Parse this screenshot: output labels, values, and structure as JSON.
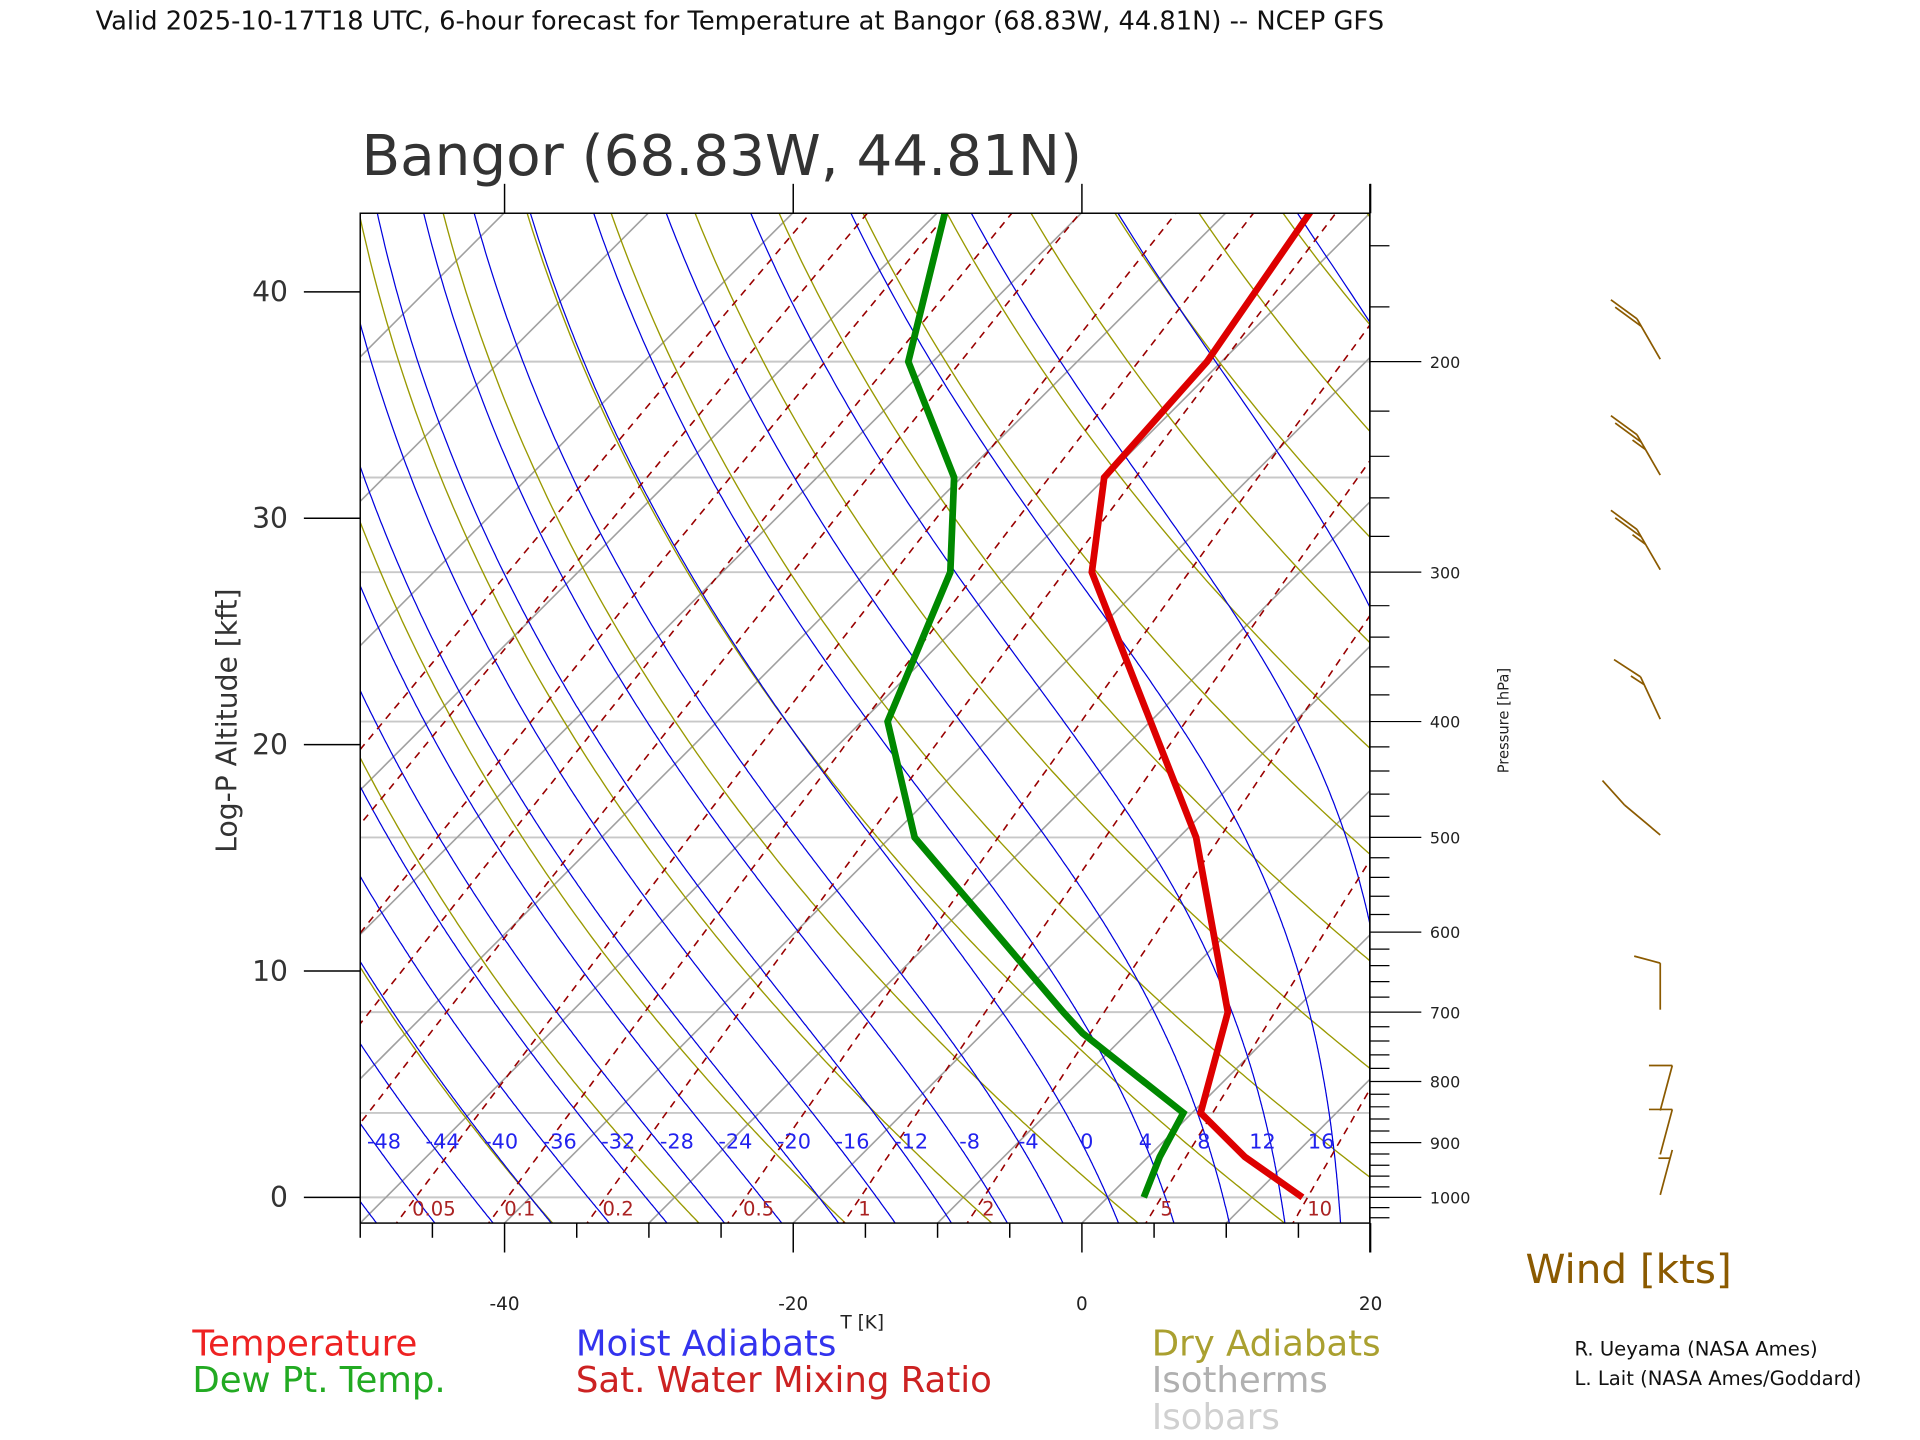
{
  "header": {
    "title": "Valid 2025-10-17T18 UTC, 6-hour forecast for Temperature at Bangor (68.83W, 44.81N) -- NCEP GFS",
    "station_title": "Bangor (68.83W, 44.81N)"
  },
  "chart_data": {
    "type": "line",
    "subtype": "skew-T log-P diagram",
    "xlabel": "T [K]",
    "ylabel_left": "Log-P Altitude [kft]",
    "ylabel_right": "Pressure [hPa]",
    "x_ticks": [
      "-40",
      "-20",
      "0",
      "20"
    ],
    "x_tick_values": [
      -40,
      -20,
      0,
      20
    ],
    "xlim": [
      -50,
      20
    ],
    "pressure_range_hPa": [
      150,
      1050
    ],
    "left_ticks": [
      "0",
      "10",
      "20",
      "30",
      "40"
    ],
    "left_tick_values_kft": [
      0,
      10,
      20,
      30,
      40
    ],
    "right_ticks": [
      "200",
      "300",
      "400",
      "500",
      "600",
      "700",
      "800",
      "900",
      "1000"
    ],
    "right_tick_values": [
      200,
      300,
      400,
      500,
      600,
      700,
      800,
      900,
      1000
    ],
    "isobars_hPa": [
      1000,
      850,
      700,
      500,
      400,
      300,
      250,
      200
    ],
    "isotherms_C": [
      -120,
      -110,
      -100,
      -90,
      -80,
      -70,
      -60,
      -50,
      -40,
      -30,
      -20,
      -10,
      0,
      10,
      20,
      30,
      40
    ],
    "dry_adiabats_theta_C": [
      -40,
      -30,
      -20,
      -10,
      0,
      10,
      20,
      30,
      40,
      50,
      60,
      70,
      80,
      90,
      100,
      110,
      120,
      130,
      140,
      150,
      160,
      170,
      180,
      190,
      200
    ],
    "moist_adiabats_C": [
      -52,
      -48,
      -44,
      -40,
      -36,
      -32,
      -28,
      -24,
      -20,
      -16,
      -12,
      -8,
      -4,
      0,
      4,
      8,
      12,
      16,
      20,
      24,
      28,
      32
    ],
    "moist_adiabat_labels": [
      "-48",
      "-44",
      "-40",
      "-36",
      "-32",
      "-28",
      "-24",
      "-20",
      "-16",
      "-12",
      "-8",
      "-4",
      "0",
      "4",
      "8",
      "12",
      "16"
    ],
    "moist_adiabat_label_values": [
      -48,
      -44,
      -40,
      -36,
      -32,
      -28,
      -24,
      -20,
      -16,
      -12,
      -8,
      -4,
      0,
      4,
      8,
      12,
      16
    ],
    "mixing_ratio_lines_gkg": [
      0.001,
      0.002,
      0.005,
      0.01,
      0.02,
      0.05,
      0.1,
      0.2,
      0.5,
      1,
      2,
      5,
      10,
      20,
      30
    ],
    "mixing_ratio_labels": [
      "0.05",
      "0.1",
      "0.2",
      "0.5",
      "1",
      "2",
      "5",
      "10"
    ],
    "mixing_ratio_label_values": [
      0.05,
      0.1,
      0.2,
      0.5,
      1,
      2,
      5,
      10
    ],
    "series": [
      {
        "name": "Temperature",
        "color": "#dd0000",
        "pressure_hPa": [
          1000,
          925,
          850,
          700,
          500,
          300,
          250,
          200,
          150
        ],
        "values_C": [
          13.5,
          6.7,
          0.6,
          -4.5,
          -18.8,
          -44.4,
          -50.1,
          -51.0,
          -54.2
        ]
      },
      {
        "name": "Dew Pt. Temp.",
        "color": "#008800",
        "pressure_hPa": [
          1000,
          925,
          850,
          729,
          700,
          500,
          400,
          300,
          250,
          200,
          150
        ],
        "values_C": [
          2.5,
          0.8,
          -0.6,
          -13.1,
          -15.9,
          -38.3,
          -48.2,
          -54.2,
          -60.5,
          -71.7,
          -79.5
        ]
      }
    ],
    "wind": {
      "label": "Wind [kts]",
      "color": "#8b5a00",
      "pressure_hPa": [
        1000,
        925,
        850,
        700,
        500,
        400,
        300,
        250,
        200
      ],
      "direction_deg": [
        15,
        15,
        15,
        0,
        310,
        335,
        330,
        330,
        330
      ],
      "speed_kts": [
        5,
        10,
        10,
        10,
        10,
        15,
        25,
        25,
        20
      ]
    },
    "legend": {
      "temperature": "Temperature",
      "dewpoint": "Dew Pt. Temp.",
      "moist": "Moist Adiabats",
      "mixing": "Sat. Water Mixing Ratio",
      "dry": "Dry Adiabats",
      "isotherms": "Isotherms",
      "isobars": "Isobars"
    },
    "colors": {
      "temperature": "#ee2222",
      "dewpoint": "#22aa22",
      "moist": "#3333ee",
      "mixing": "#cc2222",
      "dry": "#aaa030",
      "isotherms": "#b0b0b0",
      "isobars": "#d0d0d0"
    }
  },
  "credits": [
    "R. Ueyama (NASA Ames)",
    "L. Lait (NASA Ames/Goddard)"
  ]
}
